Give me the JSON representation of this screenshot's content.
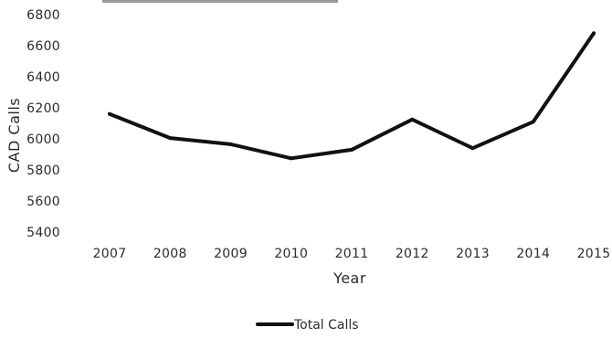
{
  "chart_data": {
    "type": "line",
    "categories": [
      "2007",
      "2008",
      "2009",
      "2010",
      "2011",
      "2012",
      "2013",
      "2014",
      "2015"
    ],
    "series": [
      {
        "name": "Total Calls",
        "values": [
          6160,
          6005,
          5965,
          5875,
          5930,
          6125,
          5940,
          6110,
          6680
        ],
        "color": "#111111"
      }
    ],
    "xlabel": "Year",
    "ylabel": "CAD Calls",
    "ylim": [
      5400,
      6800
    ],
    "yticks": [
      5400,
      5600,
      5800,
      6000,
      6200,
      6400,
      6600,
      6800
    ],
    "grid": false,
    "legend_position": "bottom"
  }
}
